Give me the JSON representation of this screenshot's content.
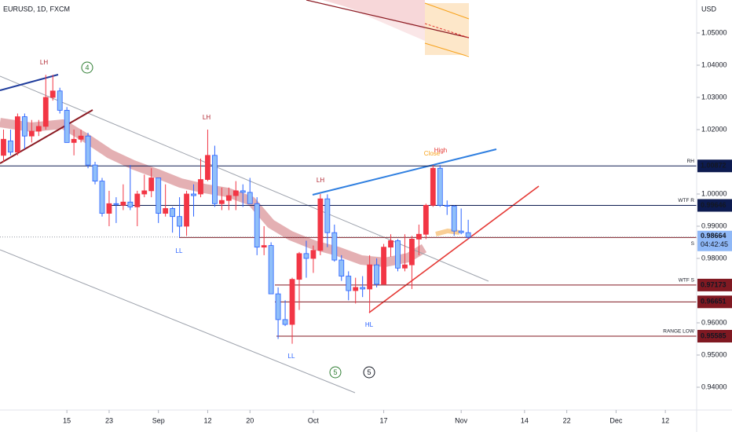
{
  "chart_data": {
    "type": "candlestick",
    "title": "EURUSD, 1D, FXCM",
    "y_axis_label": "USD",
    "open": [
      1.012,
      1.0165,
      1.013,
      1.024,
      1.018,
      1.0195,
      1.021,
      1.03,
      1.032,
      1.026,
      1.016,
      1.017,
      1.018,
      1.009,
      1.004,
      0.994,
      0.997,
      0.9965,
      0.9975,
      0.996,
      1.0,
      1.001,
      1.005,
      0.994,
      0.9955,
      0.993,
      0.99,
      1.0,
      1.0,
      1.0045,
      1.012,
      0.997,
      0.998,
      0.9995,
      1.001,
      1.0005,
      0.997,
      0.9835,
      0.984,
      0.969,
      0.961,
      0.9595,
      0.9735,
      0.9815,
      0.98,
      0.9825,
      0.9985,
      0.988,
      0.9795,
      0.9745,
      0.97,
      0.971,
      0.9705,
      0.978,
      0.972,
      0.9835,
      0.9855,
      0.977,
      0.978,
      0.986,
      0.9875,
      0.9965,
      1.008,
      0.9965,
      0.9962,
      0.9885,
      0.988
    ],
    "high": [
      1.02,
      1.02,
      1.025,
      1.025,
      1.023,
      1.023,
      1.037,
      1.037,
      1.033,
      1.027,
      1.02,
      1.02,
      1.019,
      1.01,
      1.005,
      1.001,
      0.999,
      1.003,
      1.009,
      1.001,
      1.006,
      1.008,
      1.005,
      1.003,
      0.996,
      0.999,
      1.001,
      1.003,
      1.011,
      1.02,
      1.015,
      1.002,
      1.002,
      1.004,
      1.003,
      1.005,
      0.999,
      0.99,
      0.985,
      0.971,
      0.967,
      0.974,
      0.982,
      0.9855,
      0.984,
      1.0,
      0.9999,
      0.9905,
      0.981,
      0.976,
      0.974,
      0.9745,
      0.981,
      0.98,
      0.9845,
      0.9875,
      0.986,
      0.9875,
      0.987,
      0.9905,
      0.997,
      1.009,
      1.009,
      0.998,
      0.9965,
      0.9955,
      0.992
    ],
    "low": [
      1.01,
      1.012,
      1.012,
      1.014,
      1.016,
      1.018,
      1.02,
      1.029,
      1.025,
      1.016,
      1.012,
      1.016,
      1.008,
      1.003,
      0.993,
      0.99,
      0.991,
      0.995,
      0.995,
      0.99,
      0.999,
      0.999,
      0.991,
      0.993,
      0.988,
      0.9865,
      0.987,
      0.993,
      0.999,
      1.004,
      0.996,
      0.995,
      0.995,
      0.995,
      0.996,
      0.997,
      0.981,
      0.981,
      0.969,
      0.955,
      0.959,
      0.9535,
      0.964,
      0.974,
      0.9755,
      0.981,
      0.9835,
      0.979,
      0.973,
      0.967,
      0.966,
      0.968,
      0.963,
      0.971,
      0.972,
      0.9805,
      0.976,
      0.976,
      0.9705,
      0.981,
      0.986,
      0.996,
      0.996,
      0.9935,
      0.987,
      0.9875,
      0.986
    ],
    "close": [
      1.017,
      1.013,
      1.024,
      1.018,
      1.0195,
      1.021,
      1.03,
      1.032,
      1.026,
      1.016,
      1.017,
      1.018,
      1.009,
      1.004,
      0.994,
      0.997,
      0.9968,
      0.9975,
      0.996,
      1.0,
      1.001,
      1.005,
      0.994,
      0.9955,
      0.993,
      0.99,
      1.0,
      0.9995,
      1.0045,
      1.012,
      0.997,
      0.998,
      0.9995,
      1.001,
      1.0005,
      0.997,
      0.9835,
      0.984,
      0.969,
      0.961,
      0.9595,
      0.9735,
      0.9815,
      0.98,
      0.9825,
      0.9985,
      0.988,
      0.9795,
      0.9745,
      0.97,
      0.971,
      0.9705,
      0.978,
      0.972,
      0.9835,
      0.9855,
      0.977,
      0.978,
      0.986,
      0.9875,
      0.9965,
      1.008,
      0.9965,
      0.9962,
      0.9885,
      0.988,
      0.9866
    ],
    "up_color": "#f23645",
    "down_color": "#90bff9",
    "down_border": "#2962ff",
    "xlim": [
      -0.5,
      98
    ],
    "xticks": [
      {
        "value": 9,
        "label": "15"
      },
      {
        "value": 15,
        "label": "23"
      },
      {
        "value": 22,
        "label": "Sep"
      },
      {
        "value": 29,
        "label": "12"
      },
      {
        "value": 35,
        "label": "20"
      },
      {
        "value": 44,
        "label": "Oct"
      },
      {
        "value": 54,
        "label": "17"
      },
      {
        "value": 65,
        "label": "Nov"
      },
      {
        "value": 74,
        "label": "14"
      },
      {
        "value": 80,
        "label": "22"
      },
      {
        "value": 87,
        "label": "Dec"
      },
      {
        "value": 94,
        "label": "12"
      }
    ],
    "ylim": [
      0.93293,
      1.06024
    ],
    "yticks": [
      {
        "value": 1.05,
        "label": "1.05000"
      },
      {
        "value": 1.04,
        "label": "1.04000"
      },
      {
        "value": 1.03,
        "label": "1.03000"
      },
      {
        "value": 1.02,
        "label": "1.02000"
      },
      {
        "value": 1.0,
        "label": "1.00000"
      },
      {
        "value": 0.99,
        "label": "0.99000"
      },
      {
        "value": 0.98,
        "label": "0.98000"
      },
      {
        "value": 0.96,
        "label": "0.96000"
      },
      {
        "value": 0.95,
        "label": "0.95000"
      },
      {
        "value": 0.94,
        "label": "0.94000"
      }
    ],
    "levels": [
      {
        "name": "RH",
        "value": 1.00872,
        "color": "#0d1b50"
      },
      {
        "name": "WTF R",
        "value": 0.99646,
        "color": "#0d1b50"
      },
      {
        "name": "WTF S",
        "value": 0.97173,
        "color": "#801922"
      },
      {
        "value": 0.96651,
        "color": "#801922"
      },
      {
        "name": "RANGE LOW",
        "value": 0.95585,
        "color": "#801922"
      }
    ],
    "support": {
      "name": "S",
      "value": 0.9865,
      "color": "#801922"
    },
    "last_price": {
      "value": 0.98664,
      "countdown": "04:42:45",
      "color": "#8fb8f7"
    },
    "annotations": [
      "LH",
      "LH",
      "LH",
      "LL",
      "LL",
      "HL",
      "Close",
      "High"
    ],
    "waves": [
      "4",
      "5",
      "5"
    ]
  }
}
